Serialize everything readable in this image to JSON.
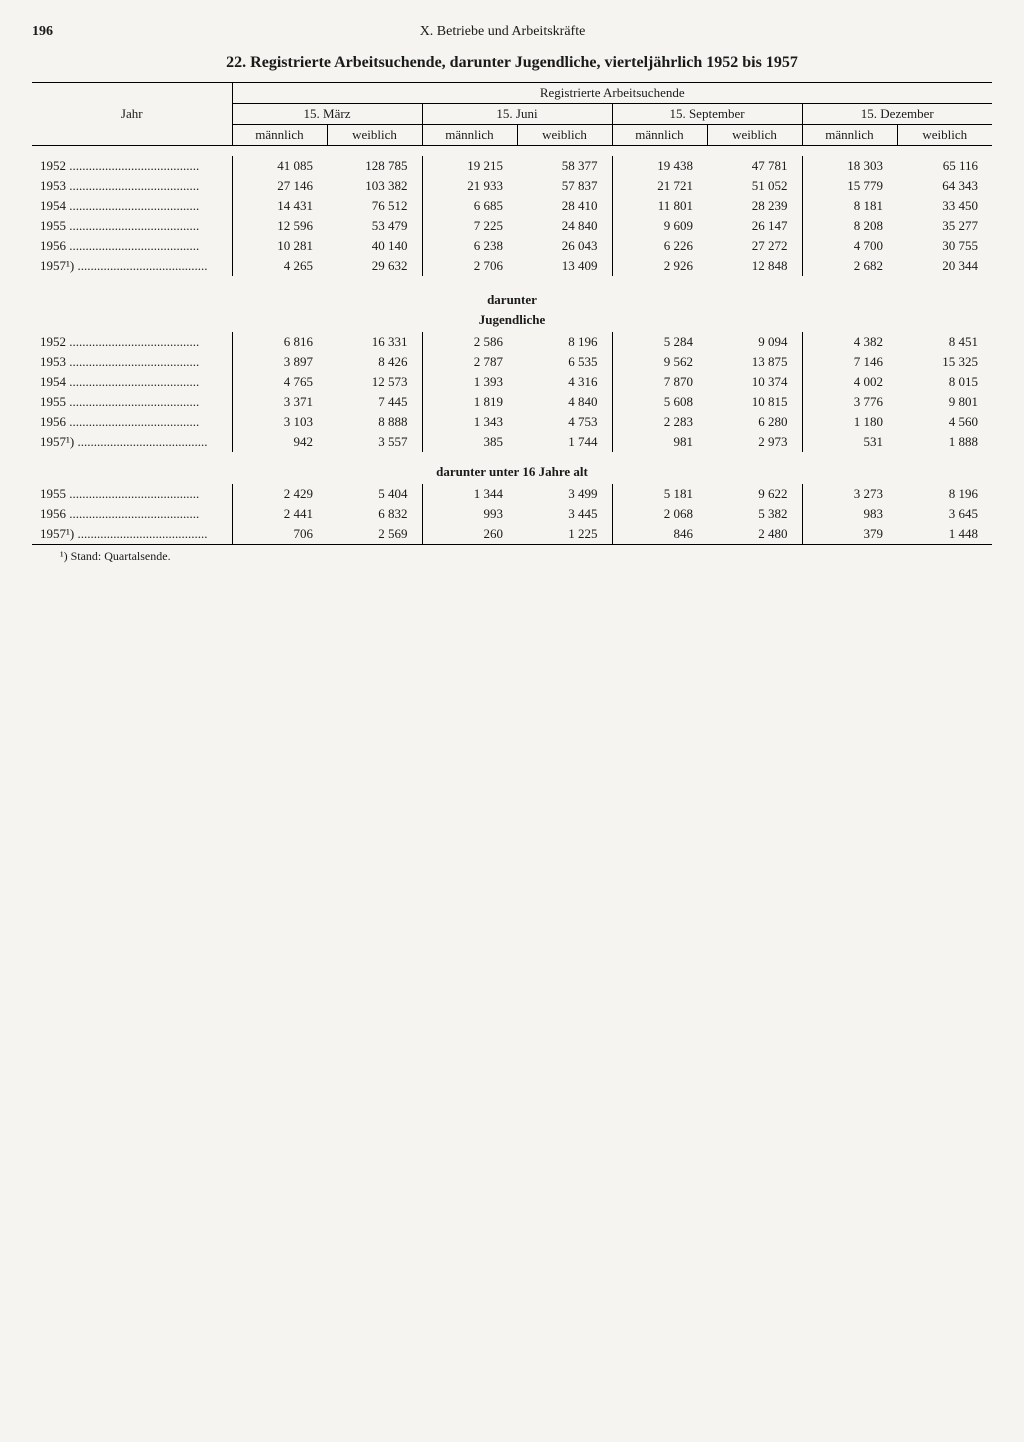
{
  "page_number": "196",
  "chapter": "X. Betriebe und Arbeitskräfte",
  "title": "22. Registrierte Arbeitsuchende, darunter Jugendliche, vierteljährlich 1952 bis 1957",
  "header": {
    "year": "Jahr",
    "super": "Registrierte Arbeitsuchende",
    "dates": [
      "15. März",
      "15. Juni",
      "15. September",
      "15. Dezember"
    ],
    "sex_m": "männlich",
    "sex_w": "weiblich"
  },
  "section_labels": {
    "darunter": "darunter",
    "jugendliche": "Jugendliche",
    "unter16": "darunter unter 16 Jahre alt"
  },
  "footnote": "¹) Stand: Quartalsende.",
  "years_main": [
    "1952",
    "1953",
    "1954",
    "1955",
    "1956",
    "1957¹)"
  ],
  "main": [
    [
      "41 085",
      "128 785",
      "19 215",
      "58 377",
      "19 438",
      "47 781",
      "18 303",
      "65 116"
    ],
    [
      "27 146",
      "103 382",
      "21 933",
      "57 837",
      "21 721",
      "51 052",
      "15 779",
      "64 343"
    ],
    [
      "14 431",
      "76 512",
      "6 685",
      "28 410",
      "11 801",
      "28 239",
      "8 181",
      "33 450"
    ],
    [
      "12 596",
      "53 479",
      "7 225",
      "24 840",
      "9 609",
      "26 147",
      "8 208",
      "35 277"
    ],
    [
      "10 281",
      "40 140",
      "6 238",
      "26 043",
      "6 226",
      "27 272",
      "4 700",
      "30 755"
    ],
    [
      "4 265",
      "29 632",
      "2 706",
      "13 409",
      "2 926",
      "12 848",
      "2 682",
      "20 344"
    ]
  ],
  "years_jug": [
    "1952",
    "1953",
    "1954",
    "1955",
    "1956",
    "1957¹)"
  ],
  "jug": [
    [
      "6 816",
      "16 331",
      "2 586",
      "8 196",
      "5 284",
      "9 094",
      "4 382",
      "8 451"
    ],
    [
      "3 897",
      "8 426",
      "2 787",
      "6 535",
      "9 562",
      "13 875",
      "7 146",
      "15 325"
    ],
    [
      "4 765",
      "12 573",
      "1 393",
      "4 316",
      "7 870",
      "10 374",
      "4 002",
      "8 015"
    ],
    [
      "3 371",
      "7 445",
      "1 819",
      "4 840",
      "5 608",
      "10 815",
      "3 776",
      "9 801"
    ],
    [
      "3 103",
      "8 888",
      "1 343",
      "4 753",
      "2 283",
      "6 280",
      "1 180",
      "4 560"
    ],
    [
      "942",
      "3 557",
      "385",
      "1 744",
      "981",
      "2 973",
      "531",
      "1 888"
    ]
  ],
  "years_u16": [
    "1955",
    "1956",
    "1957¹)"
  ],
  "u16": [
    [
      "2 429",
      "5 404",
      "1 344",
      "3 499",
      "5 181",
      "9 622",
      "3 273",
      "8 196"
    ],
    [
      "2 441",
      "6 832",
      "993",
      "3 445",
      "2 068",
      "5 382",
      "983",
      "3 645"
    ],
    [
      "706",
      "2 569",
      "260",
      "1 225",
      "846",
      "2 480",
      "379",
      "1 448"
    ]
  ]
}
